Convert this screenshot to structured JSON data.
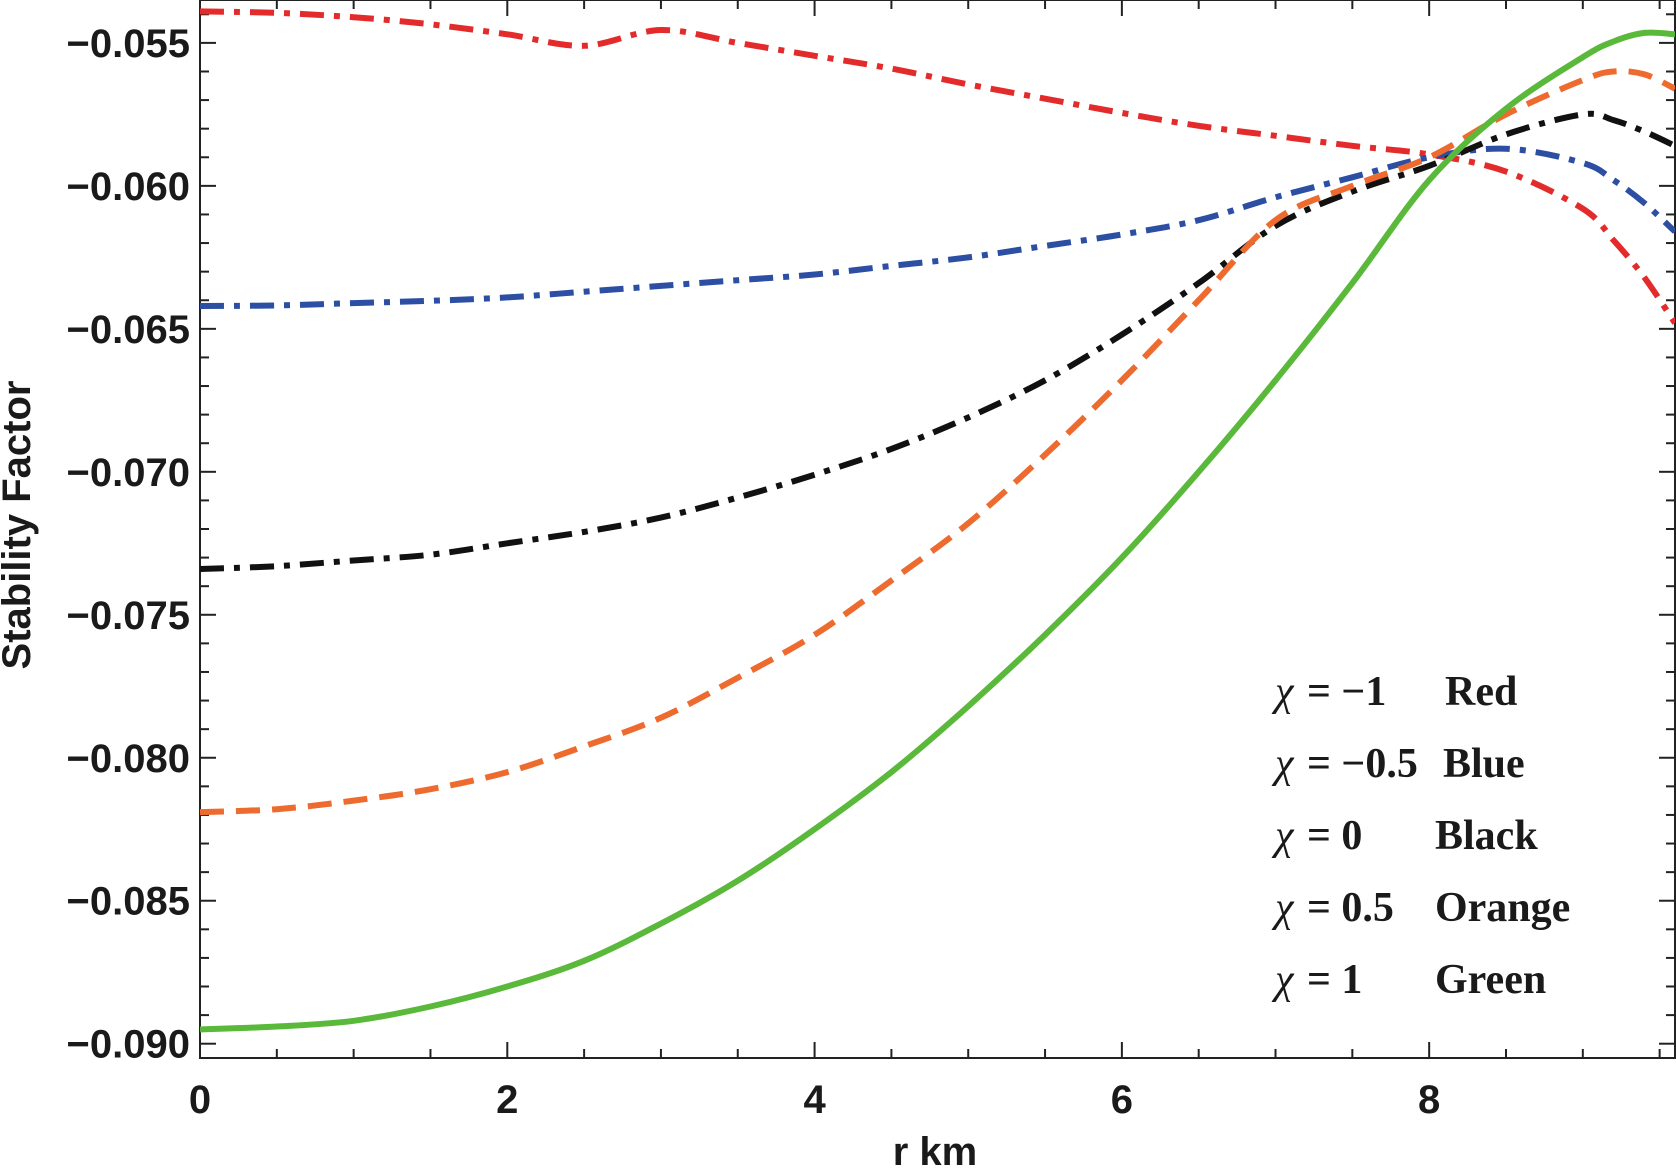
{
  "chart_data": {
    "type": "line",
    "title": "",
    "xlabel": "r  km",
    "ylabel": "Stability  Factor",
    "xlim": [
      0,
      9.6
    ],
    "ylim": [
      -0.0905,
      -0.0535
    ],
    "x_ticks": [
      0,
      2,
      4,
      6,
      8
    ],
    "x_tick_labels": [
      "0",
      "2",
      "4",
      "6",
      "8"
    ],
    "y_ticks": [
      -0.09,
      -0.085,
      -0.08,
      -0.075,
      -0.07,
      -0.065,
      -0.06,
      -0.055
    ],
    "y_tick_labels": [
      "−0.090",
      "−0.085",
      "−0.080",
      "−0.075",
      "−0.070",
      "−0.065",
      "−0.060",
      "−0.055"
    ],
    "grid": false,
    "legend_position": "bottom-right",
    "x": [
      0,
      0.5,
      1,
      1.5,
      2,
      2.5,
      3,
      3.5,
      4,
      4.5,
      5,
      5.5,
      6,
      6.5,
      7,
      7.5,
      8,
      8.5,
      9,
      9.2,
      9.4,
      9.6
    ],
    "series": [
      {
        "name": "χ = −1",
        "chi": "−1",
        "color_name": "Red",
        "color": "#e32b2b",
        "dash": "dashdot",
        "values": [
          -0.0539,
          -0.05395,
          -0.0541,
          -0.05435,
          -0.0547,
          -0.0551,
          -0.05455,
          -0.055,
          -0.05545,
          -0.0559,
          -0.05645,
          -0.05695,
          -0.05745,
          -0.0579,
          -0.05825,
          -0.0586,
          -0.0589,
          -0.0595,
          -0.0608,
          -0.0619,
          -0.0632,
          -0.0648
        ]
      },
      {
        "name": "χ = −0.5",
        "chi": "−0.5",
        "color_name": "Blue",
        "color": "#2c4fa3",
        "dash": "dashdot",
        "values": [
          -0.0642,
          -0.06418,
          -0.0641,
          -0.06402,
          -0.0639,
          -0.0637,
          -0.0635,
          -0.0633,
          -0.0631,
          -0.0628,
          -0.0625,
          -0.0621,
          -0.0617,
          -0.0612,
          -0.0604,
          -0.0597,
          -0.059,
          -0.0587,
          -0.0592,
          -0.0598,
          -0.0606,
          -0.0616
        ]
      },
      {
        "name": "χ = 0",
        "chi": "0",
        "color_name": "Black",
        "color": "#111111",
        "dash": "dashdot",
        "values": [
          -0.0734,
          -0.0733,
          -0.0731,
          -0.0729,
          -0.0725,
          -0.0721,
          -0.0716,
          -0.0709,
          -0.0701,
          -0.0692,
          -0.0681,
          -0.0668,
          -0.0652,
          -0.0634,
          -0.0614,
          -0.0602,
          -0.0593,
          -0.0582,
          -0.0575,
          -0.0577,
          -0.0581,
          -0.0586
        ]
      },
      {
        "name": "χ = 0.5",
        "chi": "0.5",
        "color_name": "Orange",
        "color": "#ee6b2f",
        "dash": "dashed",
        "values": [
          -0.0819,
          -0.0818,
          -0.0815,
          -0.0811,
          -0.0805,
          -0.0796,
          -0.0786,
          -0.0772,
          -0.0757,
          -0.0738,
          -0.0718,
          -0.0694,
          -0.0668,
          -0.064,
          -0.0612,
          -0.06,
          -0.059,
          -0.0575,
          -0.0563,
          -0.056,
          -0.0561,
          -0.0566
        ]
      },
      {
        "name": "χ = 1",
        "chi": "1",
        "color_name": "Green",
        "color": "#5ab93a",
        "dash": "solid",
        "values": [
          -0.0895,
          -0.0894,
          -0.0892,
          -0.0887,
          -0.088,
          -0.0871,
          -0.0858,
          -0.0843,
          -0.0825,
          -0.0805,
          -0.0782,
          -0.0757,
          -0.073,
          -0.07,
          -0.0668,
          -0.0634,
          -0.0598,
          -0.0573,
          -0.0555,
          -0.05495,
          -0.05465,
          -0.0547
        ]
      }
    ],
    "legend": [
      {
        "symbol": "χ",
        "value": "= −1",
        "label": "Red"
      },
      {
        "symbol": "χ",
        "value": "= −0.5",
        "label": "Blue"
      },
      {
        "symbol": "χ",
        "value": "= 0",
        "label": "Black"
      },
      {
        "symbol": "χ",
        "value": "= 0.5",
        "label": "Orange"
      },
      {
        "symbol": "χ",
        "value": "= 1",
        "label": "Green"
      }
    ]
  }
}
